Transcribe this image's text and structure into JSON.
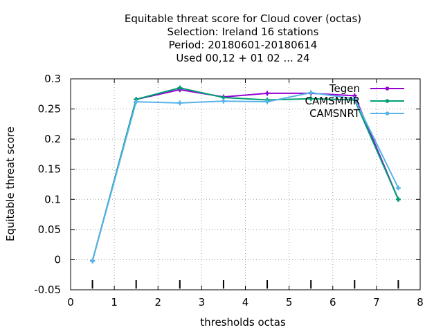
{
  "chart_data": {
    "type": "line",
    "title_lines": [
      "Equitable threat score  for Cloud cover (octas)",
      "Selection: Ireland      16 stations",
      "Period: 20180601-20180614",
      "Used  00,12  + 01 02 ... 24"
    ],
    "xlabel": "thresholds octas",
    "ylabel": "Equitable threat score",
    "xlim": [
      0,
      8
    ],
    "ylim": [
      -0.05,
      0.3
    ],
    "xticks": [
      0,
      1,
      2,
      3,
      4,
      5,
      6,
      7,
      8
    ],
    "yticks": [
      -0.05,
      0,
      0.05,
      0.1,
      0.15,
      0.2,
      0.25,
      0.3
    ],
    "xtick_labels": [
      "0",
      "1",
      "2",
      "3",
      "4",
      "5",
      "6",
      "7",
      "8"
    ],
    "ytick_labels": [
      "-0.05",
      "0",
      "0.05",
      "0.1",
      "0.15",
      "0.2",
      "0.25",
      "0.3"
    ],
    "grid": true,
    "legend_position": "top-right",
    "threshold_markers": [
      0.5,
      1.5,
      2.5,
      3.5,
      4.5,
      5.5,
      6.5,
      7.5
    ],
    "x": [
      0.5,
      1.5,
      2.5,
      3.5,
      4.5,
      5.5,
      6.5,
      7.5
    ],
    "series": [
      {
        "name": "Tegen",
        "color": "#9400d3",
        "values": [
          -0.002,
          0.266,
          0.282,
          0.27,
          0.276,
          0.276,
          0.272,
          0.1
        ]
      },
      {
        "name": "CAMSMMR",
        "color": "#009e73",
        "values": [
          -0.002,
          0.266,
          0.285,
          0.269,
          0.265,
          0.267,
          0.265,
          0.1
        ]
      },
      {
        "name": "CAMSNRT",
        "color": "#56b4e9",
        "values": [
          -0.002,
          0.262,
          0.26,
          0.263,
          0.262,
          0.277,
          0.267,
          0.119
        ]
      }
    ]
  }
}
